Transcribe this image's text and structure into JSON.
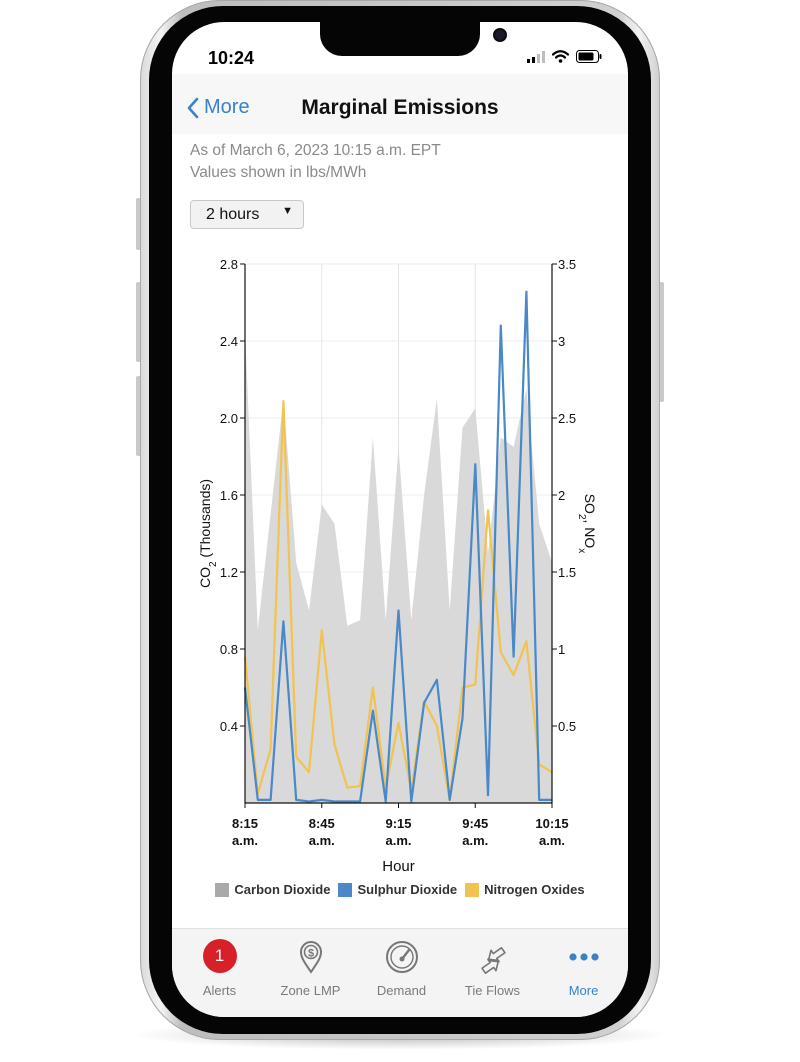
{
  "status_bar": {
    "time": "10:24"
  },
  "nav": {
    "back_label": "More",
    "title": "Marginal Emissions"
  },
  "info": {
    "as_of": "As of March 6, 2023 10:15 a.m. EPT",
    "units": "Values shown in lbs/MWh"
  },
  "range_select": {
    "value": "2 hours"
  },
  "colors": {
    "accent": "#3a82c8",
    "co2": "#d6d6d6",
    "so2": "#4a88c7",
    "nox": "#f1c350",
    "badge": "#d72027"
  },
  "chart_data": {
    "type": "area",
    "xlabel": "Hour",
    "ylabel": "CO2 (Thousands)",
    "ylabel_main": "CO",
    "ylabel_sub": "2",
    "ylabel_rest": " (Thousands)",
    "y2label_main": "SO",
    "y2label_sub1": "2",
    "y2label_mid": ", NO",
    "y2label_sub2": "x",
    "ylim": [
      0,
      2.8
    ],
    "y2lim": [
      0,
      3.5
    ],
    "y_ticks": [
      "2.8",
      "2.4",
      "2.0",
      "1.6",
      "1.2",
      "0.8",
      "0.4"
    ],
    "y2_ticks": [
      "3.5",
      "3",
      "2.5",
      "2",
      "1.5",
      "1",
      "0.5"
    ],
    "x_ticks": [
      {
        "l1": "8:15",
        "l2": "a.m."
      },
      {
        "l1": "8:45",
        "l2": "a.m."
      },
      {
        "l1": "9:15",
        "l2": "a.m."
      },
      {
        "l1": "9:45",
        "l2": "a.m."
      },
      {
        "l1": "10:15",
        "l2": "a.m."
      }
    ],
    "grid": true,
    "legend_position": "bottom",
    "x": [
      "8:15",
      "8:20",
      "8:25",
      "8:30",
      "8:35",
      "8:40",
      "8:45",
      "8:50",
      "8:55",
      "9:00",
      "9:05",
      "9:10",
      "9:15",
      "9:20",
      "9:25",
      "9:30",
      "9:35",
      "9:40",
      "9:45",
      "9:50",
      "9:55",
      "10:00",
      "10:05",
      "10:10",
      "10:15"
    ],
    "series": [
      {
        "name": "Carbon Dioxide",
        "axis": "left",
        "values": [
          2.45,
          0.9,
          1.5,
          2.1,
          1.25,
          1.0,
          1.55,
          1.45,
          0.92,
          0.95,
          1.9,
          0.95,
          1.85,
          0.95,
          1.6,
          2.1,
          1.0,
          1.95,
          2.05,
          1.3,
          1.9,
          1.85,
          2.15,
          1.45,
          1.25
        ]
      },
      {
        "name": "Sulphur Dioxide",
        "axis": "right",
        "values": [
          0.75,
          0.02,
          0.02,
          1.18,
          0.02,
          0.01,
          0.02,
          0.01,
          0.01,
          0.01,
          0.6,
          0.01,
          1.25,
          0.01,
          0.65,
          0.8,
          0.02,
          0.55,
          2.2,
          0.05,
          3.1,
          0.95,
          3.32,
          0.02,
          0.02
        ]
      },
      {
        "name": "Nitrogen Oxides",
        "axis": "right",
        "values": [
          0.95,
          0.06,
          0.35,
          2.61,
          0.3,
          0.2,
          1.12,
          0.38,
          0.1,
          0.11,
          0.75,
          0.1,
          0.52,
          0.08,
          0.66,
          0.5,
          0.02,
          0.75,
          0.77,
          1.9,
          0.98,
          0.83,
          1.05,
          0.25,
          0.2
        ]
      }
    ]
  },
  "tabs": [
    {
      "label": "Alerts",
      "badge": "1"
    },
    {
      "label": "Zone LMP"
    },
    {
      "label": "Demand"
    },
    {
      "label": "Tie Flows"
    },
    {
      "label": "More"
    }
  ]
}
